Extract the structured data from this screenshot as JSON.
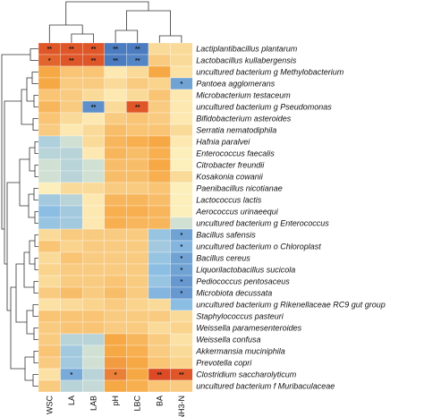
{
  "chart_data": {
    "type": "heatmap",
    "columns": [
      "WSC",
      "LA",
      "LAB",
      "pH",
      "LBC",
      "BA",
      "NH3-N"
    ],
    "column_order_tags": [
      "WSC",
      "LA",
      "LAB",
      "pH",
      "LBC",
      "BA",
      "NH₃-N"
    ],
    "rows": [
      "Lactiplantibacillus plantarum",
      "Lactobacillus kullabergensis",
      "uncultured bacterium g Methylobacterium",
      "Pantoea agglomerans",
      "Microbacterium testaceum",
      "uncultured bacterium g Pseudomonas",
      "Bifidobacterium asteroides",
      "Serratia nematodiphila",
      "Hafnia paralvei",
      "Enterococcus faecalis",
      "Citrobacter freundii",
      "Kosakonia cowanii",
      "Paenibacillus nicotianae",
      "Lactococcus lactis",
      "Aerococcus urinaeequi",
      "uncultured bacterium g Enterococcus",
      "Bacillus safensis",
      "uncultured bacterium o Chloroplast",
      "Bacillus cereus",
      "Liquorilactobacillus sucicola",
      "Pediococcus pentosaceus",
      "Microbiota decussata",
      "uncultured bacterium g Rikenellaceae RC9 gut group",
      "Staphylococcus pasteuri",
      "Weissella paramesenteroides",
      "Weissella confusa",
      "Akkermansia muciniphila",
      "Prevotella copri",
      "Clostridium saccharolyticum",
      "uncultured bacterium f Muribaculaceae"
    ],
    "values": [
      [
        0.85,
        0.85,
        0.85,
        -0.85,
        -0.85,
        0.2,
        0.2
      ],
      [
        0.8,
        0.85,
        0.85,
        -0.85,
        -0.8,
        0.3,
        0.2
      ],
      [
        0.55,
        0.35,
        0.35,
        0.1,
        0.2,
        0.55,
        0.15
      ],
      [
        0.55,
        0.3,
        0.3,
        0.2,
        0.3,
        0.25,
        -0.65
      ],
      [
        0.35,
        0.3,
        0.2,
        0.1,
        0.2,
        0.35,
        0.1
      ],
      [
        0.45,
        0.3,
        -0.75,
        0.2,
        0.85,
        0.3,
        0.1
      ],
      [
        0.35,
        0.2,
        0.1,
        0.3,
        0.35,
        0.3,
        0.1
      ],
      [
        0.3,
        0.1,
        0.2,
        0.4,
        0.35,
        0.35,
        0.2
      ],
      [
        -0.35,
        -0.2,
        0.2,
        0.45,
        0.5,
        0.55,
        0.1
      ],
      [
        -0.3,
        -0.3,
        0.1,
        0.45,
        0.4,
        0.5,
        0.05
      ],
      [
        -0.2,
        -0.3,
        -0.2,
        0.4,
        0.4,
        0.55,
        0.05
      ],
      [
        -0.2,
        -0.3,
        -0.2,
        0.4,
        0.4,
        0.5,
        0.2
      ],
      [
        0.05,
        0.2,
        0.2,
        0.3,
        0.3,
        0.35,
        0.05
      ],
      [
        -0.4,
        -0.3,
        0.1,
        0.45,
        0.45,
        0.4,
        0.05
      ],
      [
        -0.5,
        -0.4,
        0.1,
        0.5,
        0.5,
        0.45,
        0.05
      ],
      [
        -0.45,
        -0.4,
        0.1,
        0.5,
        0.45,
        0.45,
        -0.2
      ],
      [
        0.2,
        0.3,
        0.3,
        0.3,
        0.3,
        -0.45,
        -0.65
      ],
      [
        0.35,
        0.25,
        0.3,
        0.3,
        0.3,
        -0.4,
        -0.55
      ],
      [
        0.2,
        0.35,
        0.3,
        0.3,
        0.3,
        -0.45,
        -0.65
      ],
      [
        0.25,
        0.3,
        0.3,
        0.3,
        0.3,
        -0.5,
        -0.65
      ],
      [
        0.2,
        0.3,
        0.3,
        0.35,
        0.3,
        -0.45,
        -0.7
      ],
      [
        0.3,
        0.4,
        0.3,
        0.4,
        0.3,
        -0.55,
        -0.7
      ],
      [
        0.15,
        0.2,
        0.25,
        0.3,
        0.25,
        0.2,
        -0.5
      ],
      [
        0.35,
        0.35,
        0.35,
        0.3,
        0.3,
        0.3,
        0.2
      ],
      [
        0.3,
        0.35,
        0.35,
        0.3,
        0.3,
        0.2,
        0.25
      ],
      [
        0.3,
        -0.3,
        -0.3,
        0.55,
        0.45,
        0.3,
        0.15
      ],
      [
        0.35,
        -0.4,
        -0.2,
        0.55,
        0.5,
        0.3,
        0.2
      ],
      [
        0.3,
        -0.4,
        -0.2,
        0.6,
        0.55,
        0.35,
        0.25
      ],
      [
        0.15,
        -0.6,
        -0.3,
        0.7,
        0.55,
        0.9,
        0.85
      ],
      [
        0.3,
        -0.3,
        -0.25,
        0.55,
        0.5,
        0.35,
        0.3
      ]
    ],
    "significance": [
      [
        "**",
        "**",
        "**",
        "**",
        "**",
        "",
        ""
      ],
      [
        "*",
        "**",
        "**",
        "**",
        "**",
        "",
        ""
      ],
      [
        "",
        "",
        "",
        "",
        "",
        "",
        ""
      ],
      [
        "",
        "",
        "",
        "",
        "",
        "",
        "*"
      ],
      [
        "",
        "",
        "",
        "",
        "",
        "",
        ""
      ],
      [
        "",
        "",
        "**",
        "",
        "**",
        "",
        ""
      ],
      [
        "",
        "",
        "",
        "",
        "",
        "",
        ""
      ],
      [
        "",
        "",
        "",
        "",
        "",
        "",
        ""
      ],
      [
        "",
        "",
        "",
        "",
        "",
        "",
        ""
      ],
      [
        "",
        "",
        "",
        "",
        "",
        "",
        ""
      ],
      [
        "",
        "",
        "",
        "",
        "",
        "",
        ""
      ],
      [
        "",
        "",
        "",
        "",
        "",
        "",
        ""
      ],
      [
        "",
        "",
        "",
        "",
        "",
        "",
        ""
      ],
      [
        "",
        "",
        "",
        "",
        "",
        "",
        ""
      ],
      [
        "",
        "",
        "",
        "",
        "",
        "",
        ""
      ],
      [
        "",
        "",
        "",
        "",
        "",
        "",
        ""
      ],
      [
        "",
        "",
        "",
        "",
        "",
        "",
        "*"
      ],
      [
        "",
        "",
        "",
        "",
        "",
        "",
        "*"
      ],
      [
        "",
        "",
        "",
        "",
        "",
        "",
        "*"
      ],
      [
        "",
        "",
        "",
        "",
        "",
        "",
        "*"
      ],
      [
        "",
        "",
        "",
        "",
        "",
        "",
        "*"
      ],
      [
        "",
        "",
        "",
        "",
        "",
        "",
        "*"
      ],
      [
        "",
        "",
        "",
        "",
        "",
        "",
        ""
      ],
      [
        "",
        "",
        "",
        "",
        "",
        "",
        ""
      ],
      [
        "",
        "",
        "",
        "",
        "",
        "",
        ""
      ],
      [
        "",
        "",
        "",
        "",
        "",
        "",
        ""
      ],
      [
        "",
        "",
        "",
        "",
        "",
        "",
        ""
      ],
      [
        "",
        "",
        "",
        "",
        "",
        "",
        ""
      ],
      [
        "",
        "*",
        "",
        "*",
        "",
        "**",
        "**"
      ],
      [
        "",
        "",
        "",
        "",
        "",
        "",
        ""
      ]
    ],
    "value_range": [
      -1,
      1
    ],
    "color_scale": {
      "low": "#2f5fb0",
      "mid": "#fdf6c8",
      "high": "#d32f1c"
    },
    "legend": "none"
  }
}
